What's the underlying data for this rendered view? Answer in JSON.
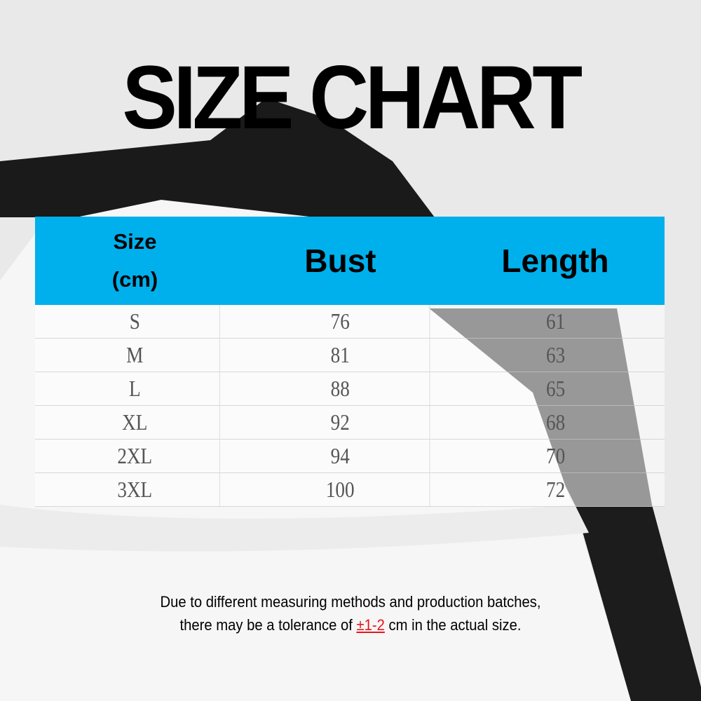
{
  "title": "SIZE CHART",
  "table": {
    "header_color": "#00b0ec",
    "headers": [
      "Size",
      "(cm)",
      "Bust",
      "Length"
    ],
    "rows": [
      [
        "S",
        "76",
        "61"
      ],
      [
        "M",
        "81",
        "63"
      ],
      [
        "L",
        "88",
        "65"
      ],
      [
        "XL",
        "92",
        "68"
      ],
      [
        "2XL",
        "94",
        "70"
      ],
      [
        "3XL",
        "100",
        "72"
      ]
    ]
  },
  "note": {
    "line1": "Due to different measuring methods and production batches,",
    "line2_before": "there may be a tolerance of ",
    "tolerance": "±1-2",
    "line2_after": " cm in the actual size.",
    "tolerance_color": "#e8141b"
  }
}
